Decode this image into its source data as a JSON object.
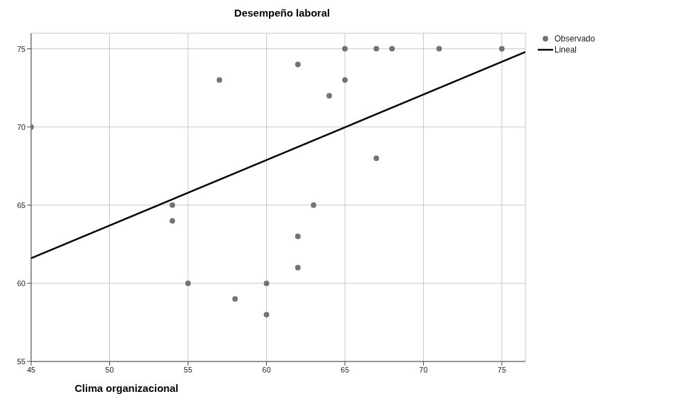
{
  "chart_data": {
    "type": "scatter",
    "title": "Desempeño laboral",
    "xlabel": "Clima organizacional",
    "xlim": [
      45,
      76.5
    ],
    "xticks": [
      45,
      50,
      55,
      60,
      65,
      70,
      75
    ],
    "ylim": [
      55,
      76
    ],
    "yticks": [
      55,
      60,
      65,
      70,
      75
    ],
    "grid": true,
    "legend": "top right",
    "series": [
      {
        "name": "Observado",
        "marker": "circle",
        "color": "#737373",
        "x": [
          45,
          54,
          54,
          55,
          57,
          58,
          60,
          60,
          62,
          62,
          62,
          63,
          64,
          65,
          65,
          67,
          67,
          68,
          71,
          75
        ],
        "values": [
          70,
          65,
          64,
          60,
          73,
          59,
          60,
          58,
          74,
          63,
          61,
          65,
          72,
          75,
          73,
          75,
          68,
          75,
          75,
          75
        ]
      },
      {
        "name": "Lineal",
        "type": "line",
        "marker": "none",
        "color": "#000000",
        "line_style": "solid",
        "x": [
          45,
          76.5
        ],
        "values": [
          61.6,
          74.8
        ]
      }
    ]
  }
}
